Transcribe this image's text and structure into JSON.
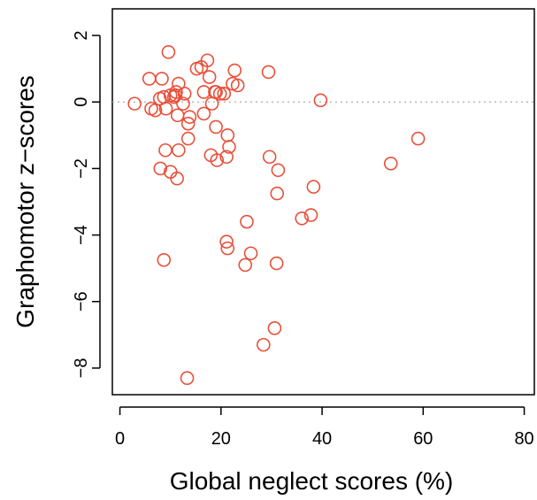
{
  "chart_data": {
    "type": "scatter",
    "title": "",
    "xlabel": "Global neglect scores (%)",
    "ylabel": "Graphomotor z−scores",
    "xlim": [
      -1.5,
      82
    ],
    "ylim": [
      -8.8,
      2.8
    ],
    "x_ticks": [
      0,
      20,
      40,
      60,
      80
    ],
    "x_tick_labels": [
      "0",
      "20",
      "40",
      "60",
      "80"
    ],
    "y_ticks": [
      2,
      0,
      -2,
      -4,
      -6,
      -8
    ],
    "y_tick_labels": [
      "2",
      "0",
      "−2",
      "−4",
      "−6",
      "−8"
    ],
    "reference_line": {
      "y": 0,
      "style": "dotted",
      "color": "#aaaaaa"
    },
    "marker_color": "#e8503a",
    "marker": "open-circle",
    "grid": false,
    "legend": "none",
    "series": [
      {
        "x": [
          2.9,
          5.8,
          6.2,
          7.0,
          7.9,
          8.3,
          9.6,
          8.7,
          9.1,
          10.7,
          11.0,
          11.1,
          11.6,
          12.5,
          10.0,
          11.4,
          12.8,
          15.2,
          16.1,
          17.3,
          17.7,
          16.6,
          18.2,
          18.8,
          19.0,
          19.8,
          20.6,
          22.3,
          22.7,
          23.3,
          29.4,
          39.7,
          13.8,
          13.5,
          16.6,
          19.0,
          21.3,
          21.6,
          13.5,
          11.6,
          9.0,
          11.3,
          8.0,
          10.0,
          18.0,
          19.2,
          21.1,
          29.6,
          31.3,
          38.3,
          31.1,
          36.0,
          37.8,
          25.1,
          21.1,
          21.3,
          25.9,
          24.8,
          31.0,
          8.7,
          30.6,
          28.4,
          13.3,
          53.6,
          59.0
        ],
        "y": [
          -0.05,
          0.7,
          -0.2,
          -0.25,
          0.1,
          0.7,
          1.5,
          0.15,
          -0.2,
          0.15,
          0.2,
          0.3,
          0.55,
          -0.05,
          0.2,
          -0.4,
          0.25,
          1.0,
          1.05,
          1.25,
          0.75,
          0.3,
          -0.05,
          0.3,
          0.3,
          0.25,
          0.25,
          0.55,
          0.95,
          0.5,
          0.9,
          0.05,
          -0.45,
          -0.65,
          -0.35,
          -0.75,
          -1.0,
          -1.35,
          -1.1,
          -1.45,
          -1.45,
          -2.3,
          -2.0,
          -2.1,
          -1.6,
          -1.75,
          -1.65,
          -1.65,
          -2.05,
          -2.55,
          -2.75,
          -3.5,
          -3.4,
          -3.6,
          -4.2,
          -4.4,
          -4.55,
          -4.9,
          -4.85,
          -4.75,
          -6.8,
          -7.3,
          -8.3,
          -1.85,
          -1.1
        ]
      }
    ]
  }
}
